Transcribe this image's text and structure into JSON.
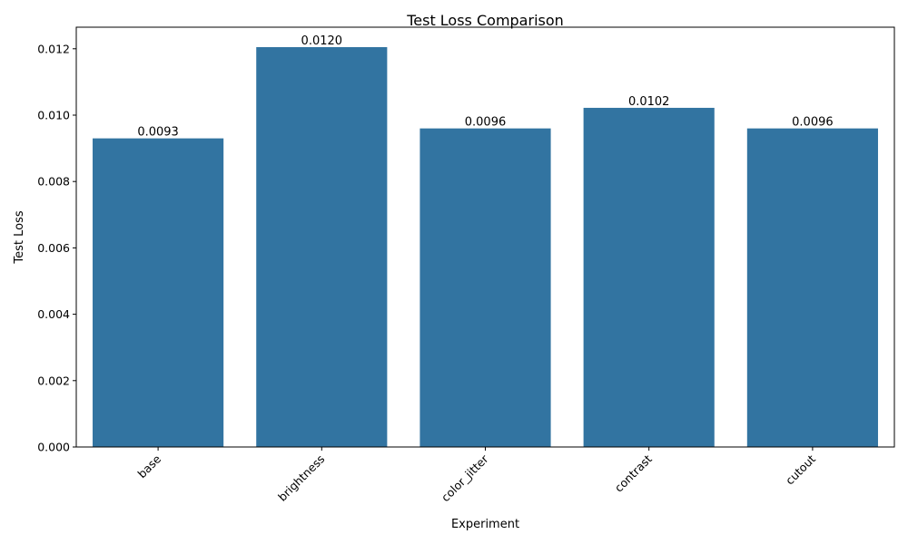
{
  "chart_data": {
    "type": "bar",
    "title": "Test Loss Comparison",
    "xlabel": "Experiment",
    "ylabel": "Test Loss",
    "categories": [
      "base",
      "brightness",
      "color_jitter",
      "contrast",
      "cutout"
    ],
    "values": [
      0.0093,
      0.01205,
      0.0096,
      0.01022,
      0.0096
    ],
    "value_labels": [
      "0.0093",
      "0.0120",
      "0.0096",
      "0.0102",
      "0.0096"
    ],
    "yticks": [
      0.0,
      0.002,
      0.004,
      0.006,
      0.008,
      0.01,
      0.012
    ],
    "ytick_labels": [
      "0.000",
      "0.002",
      "0.004",
      "0.006",
      "0.008",
      "0.010",
      "0.012"
    ],
    "ylim": [
      0,
      0.01265
    ],
    "xtick_rotation": 45,
    "bar_color": "#3274a1",
    "grid": false,
    "legend": "none"
  }
}
